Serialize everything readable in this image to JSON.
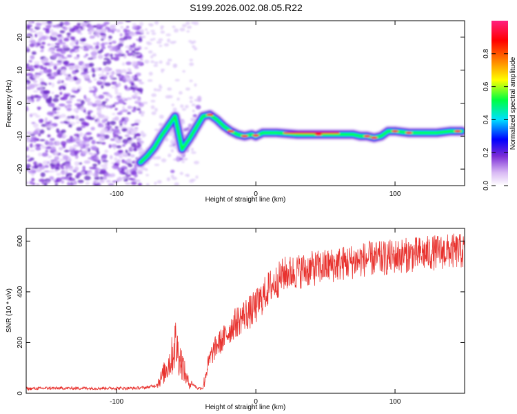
{
  "title": "S199.2026.002.08.05.R22",
  "colors": {
    "snr_line": "#e8322e",
    "axis": "#000000"
  },
  "chart_data": [
    {
      "type": "heatmap",
      "xlabel": "Height of straight line (km)",
      "ylabel": "Frequency (Hz)",
      "xlim": [
        -165,
        150
      ],
      "ylim": [
        -25,
        25
      ],
      "xticks": [
        -100,
        0,
        100
      ],
      "yticks": [
        -20,
        -10,
        0,
        10,
        20
      ],
      "colorbar": {
        "label": "Normalized spectral amplitude",
        "range": [
          0,
          1
        ],
        "ticks": [
          "0.0",
          "0.2",
          "0.4",
          "0.6",
          "0.8"
        ],
        "colormap": [
          "#ffffff",
          "#7b2cd6",
          "#0000ff",
          "#00e0ff",
          "#00ff40",
          "#ffff00",
          "#ff7f00",
          "#ff0000",
          "#ff2080"
        ]
      },
      "ridge": {
        "x": [
          -83,
          -78,
          -73,
          -68,
          -63,
          -58,
          -53,
          -48,
          -43,
          -38,
          -33,
          -28,
          -23,
          -18,
          -13,
          -8,
          -3,
          0,
          5,
          15,
          30,
          50,
          60,
          70,
          75,
          80,
          85,
          90,
          95,
          100,
          110,
          120,
          130,
          140,
          148
        ],
        "y": [
          -18,
          -16,
          -13.5,
          -10,
          -7,
          -4,
          -14,
          -11,
          -7.5,
          -4,
          -3.5,
          -5,
          -7,
          -8.5,
          -9.5,
          -10,
          -9.5,
          -10,
          -9,
          -9,
          -9.5,
          -9.5,
          -9.5,
          -9.5,
          -10,
          -10,
          -10.5,
          -10,
          -8.5,
          -8.5,
          -9,
          -9,
          -9,
          -8.5,
          -8.5
        ]
      }
    },
    {
      "type": "line",
      "xlabel": "Height of straight line (km)",
      "ylabel": "SNR (10 * v/v)",
      "xlim": [
        -165,
        150
      ],
      "ylim": [
        0,
        650
      ],
      "xticks": [
        -100,
        0,
        100
      ],
      "yticks": [
        0,
        200,
        400,
        600
      ],
      "series": [
        {
          "x": [
            -165,
            -150,
            -130,
            -110,
            -90,
            -80,
            -72,
            -68,
            -64,
            -60,
            -58,
            -56,
            -54,
            -52,
            -50,
            -48,
            -46,
            -44,
            -42,
            -40,
            -38,
            -35,
            -32,
            -28,
            -24,
            -20,
            -16,
            -12,
            -8,
            -4,
            0,
            5,
            10,
            15,
            20,
            25,
            30,
            40,
            50,
            60,
            70,
            80,
            90,
            100,
            110,
            120,
            130,
            140,
            150
          ],
          "values": [
            18,
            20,
            20,
            20,
            20,
            22,
            30,
            60,
            100,
            150,
            200,
            160,
            130,
            100,
            60,
            40,
            40,
            30,
            20,
            20,
            20,
            100,
            150,
            190,
            210,
            240,
            270,
            290,
            310,
            320,
            340,
            380,
            420,
            440,
            470,
            475,
            480,
            490,
            500,
            510,
            520,
            530,
            530,
            540,
            545,
            550,
            555,
            560,
            560
          ]
        }
      ]
    }
  ]
}
